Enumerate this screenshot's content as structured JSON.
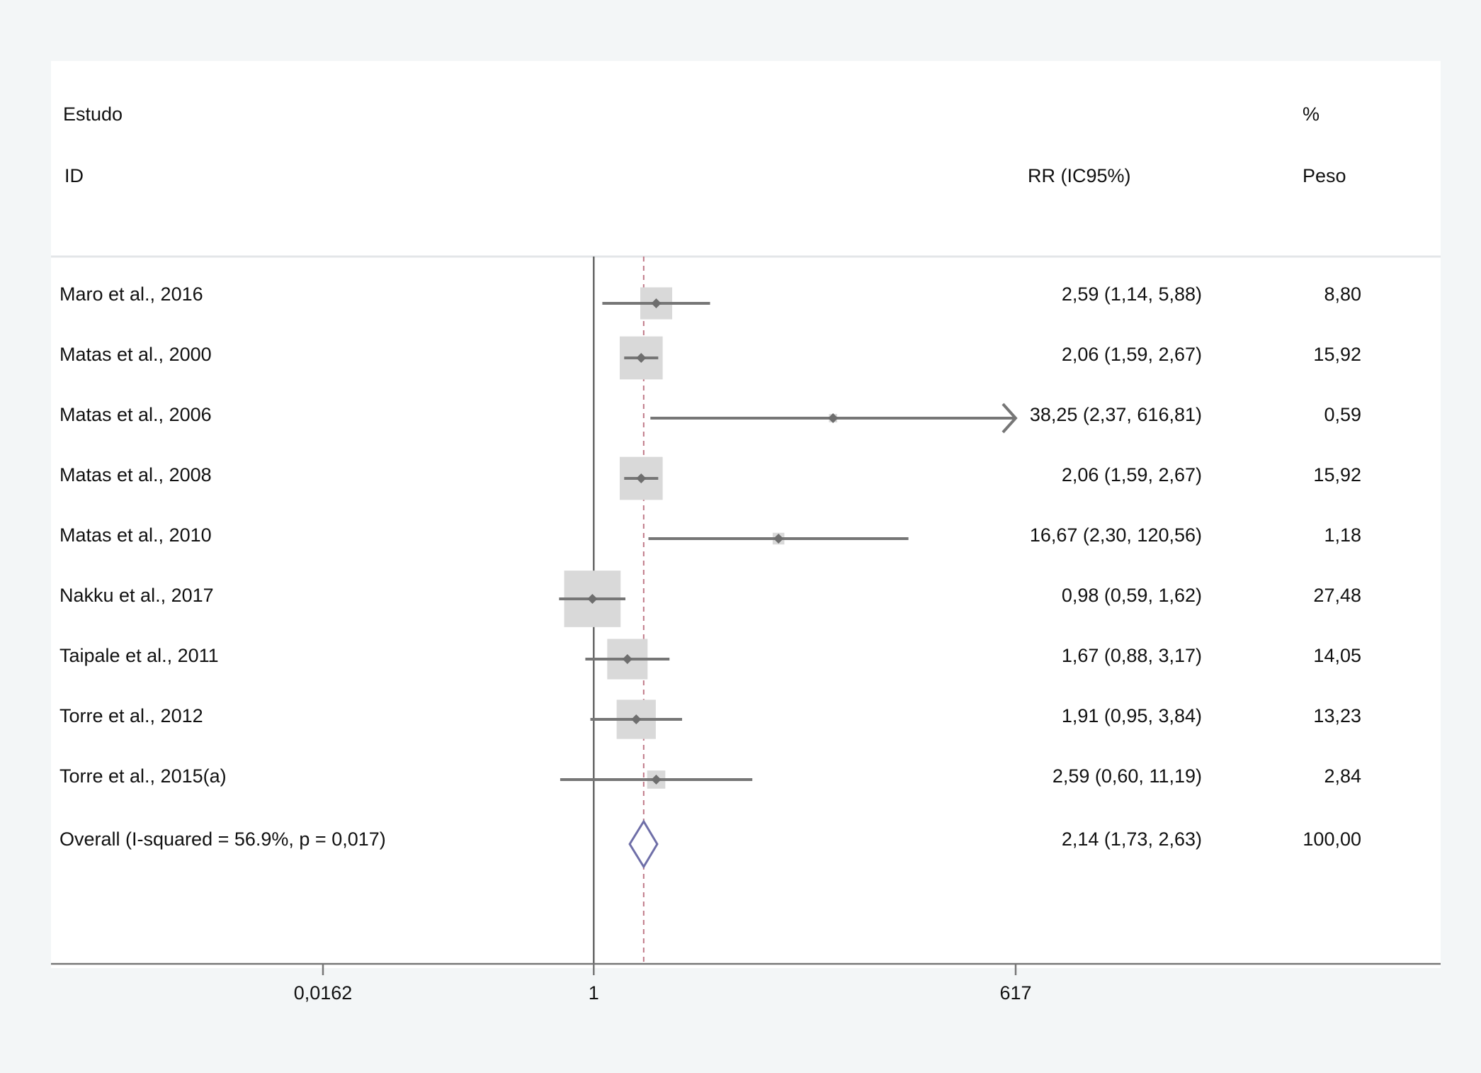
{
  "header": {
    "study_label": "Estudo",
    "id_label": "ID",
    "effect_label": "RR (IC95%)",
    "pct_label": "%",
    "weight_label": "Peso"
  },
  "chart_data": {
    "type": "forest",
    "x_scale": "log",
    "xlim": [
      0.0162,
      617
    ],
    "xticks": [
      0.0162,
      1,
      617
    ],
    "xtick_labels": [
      "0,0162",
      "1",
      "617"
    ],
    "null_line": 1,
    "pooled_line": 2.14,
    "studies": [
      {
        "label": "Maro et al., 2016",
        "rr": 2.59,
        "lo": 1.14,
        "hi": 5.88,
        "text": "2,59 (1,14, 5,88)",
        "weight": 8.8,
        "weight_text": "8,80"
      },
      {
        "label": "Matas et al., 2000",
        "rr": 2.06,
        "lo": 1.59,
        "hi": 2.67,
        "text": "2,06 (1,59, 2,67)",
        "weight": 15.92,
        "weight_text": "15,92"
      },
      {
        "label": "Matas et al., 2006",
        "rr": 38.25,
        "lo": 2.37,
        "hi": 616.81,
        "text": "38,25 (2,37, 616,81)",
        "weight": 0.59,
        "weight_text": "0,59",
        "arrow": true
      },
      {
        "label": "Matas et al., 2008",
        "rr": 2.06,
        "lo": 1.59,
        "hi": 2.67,
        "text": "2,06 (1,59, 2,67)",
        "weight": 15.92,
        "weight_text": "15,92"
      },
      {
        "label": "Matas et al., 2010",
        "rr": 16.67,
        "lo": 2.3,
        "hi": 120.56,
        "text": "16,67 (2,30, 120,56)",
        "weight": 1.18,
        "weight_text": "1,18"
      },
      {
        "label": "Nakku et al., 2017",
        "rr": 0.98,
        "lo": 0.59,
        "hi": 1.62,
        "text": "0,98 (0,59, 1,62)",
        "weight": 27.48,
        "weight_text": "27,48"
      },
      {
        "label": "Taipale et al., 2011",
        "rr": 1.67,
        "lo": 0.88,
        "hi": 3.17,
        "text": "1,67 (0,88, 3,17)",
        "weight": 14.05,
        "weight_text": "14,05"
      },
      {
        "label": "Torre et al., 2012",
        "rr": 1.91,
        "lo": 0.95,
        "hi": 3.84,
        "text": "1,91 (0,95, 3,84)",
        "weight": 13.23,
        "weight_text": "13,23"
      },
      {
        "label": "Torre et al., 2015(a)",
        "rr": 2.59,
        "lo": 0.6,
        "hi": 11.19,
        "text": "2,59 (0,60, 11,19)",
        "weight": 2.84,
        "weight_text": "2,84"
      }
    ],
    "overall": {
      "label": "Overall (I-squared = 56.9%, p = 0,017)",
      "rr": 2.14,
      "lo": 1.73,
      "hi": 2.63,
      "text": "2,14 (1,73, 2,63)",
      "weight_text": "100,00"
    },
    "colors": {
      "ci_line": "#767676",
      "box": "#d9d9d9",
      "point": "#6e6e6e",
      "diamond": "#6f6fa8",
      "pooled_line": "#c07a88",
      "axis": "#777777",
      "null_line": "#666666"
    }
  }
}
